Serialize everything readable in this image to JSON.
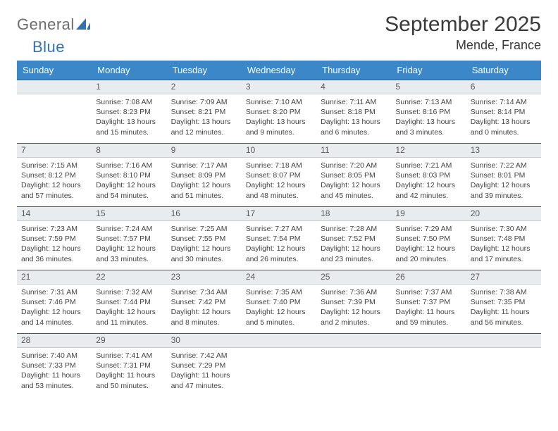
{
  "logo": {
    "text1": "General",
    "text2": "Blue"
  },
  "title": "September 2025",
  "subtitle": "Mende, France",
  "style": {
    "header_bg": "#3b87c8",
    "header_text": "#ffffff",
    "daynum_bg": "#e9ecef",
    "daynum_border_top": "#2b5f8e",
    "body_text": "#444444",
    "title_color": "#3a3a3a",
    "font_family": "Arial"
  },
  "columns": [
    "Sunday",
    "Monday",
    "Tuesday",
    "Wednesday",
    "Thursday",
    "Friday",
    "Saturday"
  ],
  "weeks": [
    {
      "nums": [
        "",
        "1",
        "2",
        "3",
        "4",
        "5",
        "6"
      ],
      "cells": [
        [],
        [
          "Sunrise: 7:08 AM",
          "Sunset: 8:23 PM",
          "Daylight: 13 hours",
          "and 15 minutes."
        ],
        [
          "Sunrise: 7:09 AM",
          "Sunset: 8:21 PM",
          "Daylight: 13 hours",
          "and 12 minutes."
        ],
        [
          "Sunrise: 7:10 AM",
          "Sunset: 8:20 PM",
          "Daylight: 13 hours",
          "and 9 minutes."
        ],
        [
          "Sunrise: 7:11 AM",
          "Sunset: 8:18 PM",
          "Daylight: 13 hours",
          "and 6 minutes."
        ],
        [
          "Sunrise: 7:13 AM",
          "Sunset: 8:16 PM",
          "Daylight: 13 hours",
          "and 3 minutes."
        ],
        [
          "Sunrise: 7:14 AM",
          "Sunset: 8:14 PM",
          "Daylight: 13 hours",
          "and 0 minutes."
        ]
      ]
    },
    {
      "nums": [
        "7",
        "8",
        "9",
        "10",
        "11",
        "12",
        "13"
      ],
      "cells": [
        [
          "Sunrise: 7:15 AM",
          "Sunset: 8:12 PM",
          "Daylight: 12 hours",
          "and 57 minutes."
        ],
        [
          "Sunrise: 7:16 AM",
          "Sunset: 8:10 PM",
          "Daylight: 12 hours",
          "and 54 minutes."
        ],
        [
          "Sunrise: 7:17 AM",
          "Sunset: 8:09 PM",
          "Daylight: 12 hours",
          "and 51 minutes."
        ],
        [
          "Sunrise: 7:18 AM",
          "Sunset: 8:07 PM",
          "Daylight: 12 hours",
          "and 48 minutes."
        ],
        [
          "Sunrise: 7:20 AM",
          "Sunset: 8:05 PM",
          "Daylight: 12 hours",
          "and 45 minutes."
        ],
        [
          "Sunrise: 7:21 AM",
          "Sunset: 8:03 PM",
          "Daylight: 12 hours",
          "and 42 minutes."
        ],
        [
          "Sunrise: 7:22 AM",
          "Sunset: 8:01 PM",
          "Daylight: 12 hours",
          "and 39 minutes."
        ]
      ]
    },
    {
      "nums": [
        "14",
        "15",
        "16",
        "17",
        "18",
        "19",
        "20"
      ],
      "cells": [
        [
          "Sunrise: 7:23 AM",
          "Sunset: 7:59 PM",
          "Daylight: 12 hours",
          "and 36 minutes."
        ],
        [
          "Sunrise: 7:24 AM",
          "Sunset: 7:57 PM",
          "Daylight: 12 hours",
          "and 33 minutes."
        ],
        [
          "Sunrise: 7:25 AM",
          "Sunset: 7:55 PM",
          "Daylight: 12 hours",
          "and 30 minutes."
        ],
        [
          "Sunrise: 7:27 AM",
          "Sunset: 7:54 PM",
          "Daylight: 12 hours",
          "and 26 minutes."
        ],
        [
          "Sunrise: 7:28 AM",
          "Sunset: 7:52 PM",
          "Daylight: 12 hours",
          "and 23 minutes."
        ],
        [
          "Sunrise: 7:29 AM",
          "Sunset: 7:50 PM",
          "Daylight: 12 hours",
          "and 20 minutes."
        ],
        [
          "Sunrise: 7:30 AM",
          "Sunset: 7:48 PM",
          "Daylight: 12 hours",
          "and 17 minutes."
        ]
      ]
    },
    {
      "nums": [
        "21",
        "22",
        "23",
        "24",
        "25",
        "26",
        "27"
      ],
      "cells": [
        [
          "Sunrise: 7:31 AM",
          "Sunset: 7:46 PM",
          "Daylight: 12 hours",
          "and 14 minutes."
        ],
        [
          "Sunrise: 7:32 AM",
          "Sunset: 7:44 PM",
          "Daylight: 12 hours",
          "and 11 minutes."
        ],
        [
          "Sunrise: 7:34 AM",
          "Sunset: 7:42 PM",
          "Daylight: 12 hours",
          "and 8 minutes."
        ],
        [
          "Sunrise: 7:35 AM",
          "Sunset: 7:40 PM",
          "Daylight: 12 hours",
          "and 5 minutes."
        ],
        [
          "Sunrise: 7:36 AM",
          "Sunset: 7:39 PM",
          "Daylight: 12 hours",
          "and 2 minutes."
        ],
        [
          "Sunrise: 7:37 AM",
          "Sunset: 7:37 PM",
          "Daylight: 11 hours",
          "and 59 minutes."
        ],
        [
          "Sunrise: 7:38 AM",
          "Sunset: 7:35 PM",
          "Daylight: 11 hours",
          "and 56 minutes."
        ]
      ]
    },
    {
      "nums": [
        "28",
        "29",
        "30",
        "",
        "",
        "",
        ""
      ],
      "cells": [
        [
          "Sunrise: 7:40 AM",
          "Sunset: 7:33 PM",
          "Daylight: 11 hours",
          "and 53 minutes."
        ],
        [
          "Sunrise: 7:41 AM",
          "Sunset: 7:31 PM",
          "Daylight: 11 hours",
          "and 50 minutes."
        ],
        [
          "Sunrise: 7:42 AM",
          "Sunset: 7:29 PM",
          "Daylight: 11 hours",
          "and 47 minutes."
        ],
        [],
        [],
        [],
        []
      ]
    }
  ]
}
